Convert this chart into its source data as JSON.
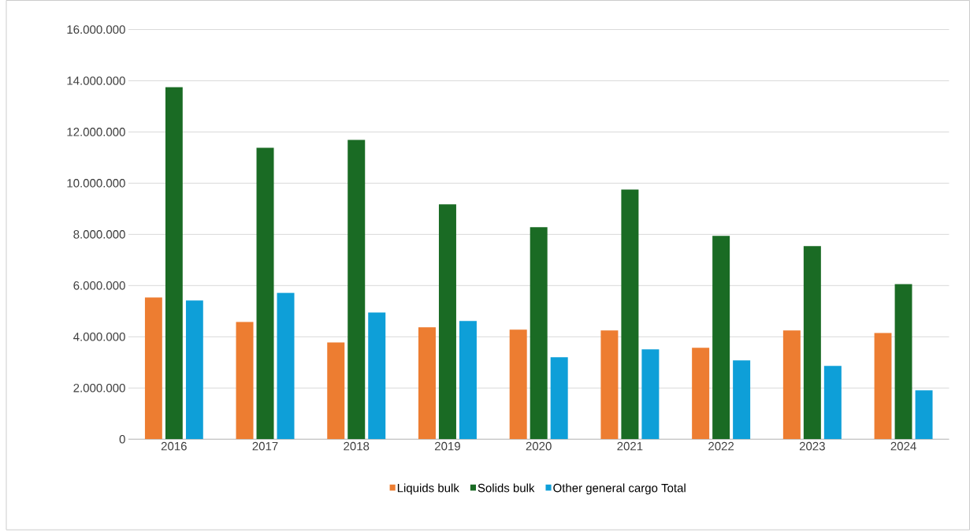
{
  "chart_data": {
    "type": "bar",
    "categories": [
      "2016",
      "2017",
      "2018",
      "2019",
      "2020",
      "2021",
      "2022",
      "2023",
      "2024"
    ],
    "series": [
      {
        "name": "Liquids bulk",
        "color": "#ed7d31",
        "values": [
          5540000,
          4580000,
          3780000,
          4370000,
          4280000,
          4250000,
          3570000,
          4250000,
          4150000
        ]
      },
      {
        "name": "Solids bulk",
        "color": "#1a6b24",
        "values": [
          13750000,
          11380000,
          11690000,
          9170000,
          8280000,
          9750000,
          7940000,
          7540000,
          6060000
        ]
      },
      {
        "name": "Other general cargo Total",
        "color": "#0e9fd8",
        "values": [
          5420000,
          5720000,
          4950000,
          4620000,
          3200000,
          3510000,
          3080000,
          2860000,
          1910000
        ]
      }
    ],
    "ylim": [
      0,
      16000000
    ],
    "yticks": [
      0,
      {
        "value": 2000000,
        "label": "2.000.000"
      },
      {
        "value": 4000000,
        "label": "4.000.000"
      },
      {
        "value": 6000000,
        "label": "6.000.000"
      },
      {
        "value": 8000000,
        "label": "8.000.000"
      },
      {
        "value": 10000000,
        "label": "10.000.000"
      },
      {
        "value": 12000000,
        "label": "12.000.000"
      },
      {
        "value": 14000000,
        "label": "14.000.000"
      },
      {
        "value": 16000000,
        "label": "16.000.000"
      }
    ],
    "grid": "y",
    "legend": "bottom"
  }
}
